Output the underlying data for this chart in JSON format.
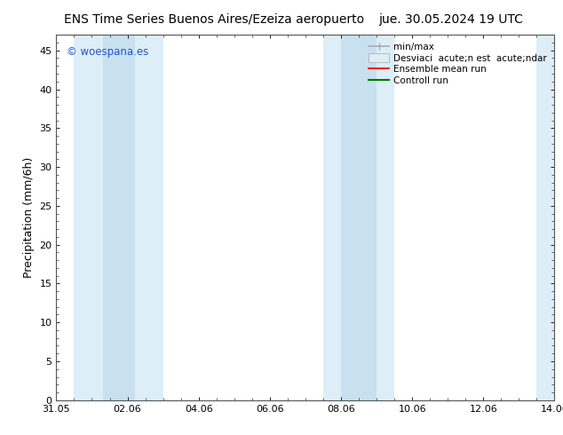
{
  "title_left": "ENS Time Series Buenos Aires/Ezeiza aeropuerto",
  "title_right": "jue. 30.05.2024 19 UTC",
  "ylabel": "Precipitation (mm/6h)",
  "ylim": [
    0,
    47
  ],
  "yticks": [
    0,
    5,
    10,
    15,
    20,
    25,
    30,
    35,
    40,
    45
  ],
  "xlim_start": 0,
  "xlim_end": 14,
  "xtick_labels": [
    "31.05",
    "02.06",
    "04.06",
    "06.06",
    "08.06",
    "10.06",
    "12.06",
    "14.06"
  ],
  "xtick_positions": [
    0,
    2,
    4,
    6,
    8,
    10,
    12,
    14
  ],
  "shaded_bands_light": [
    {
      "start": 0.5,
      "end": 3.0
    },
    {
      "start": 7.5,
      "end": 9.5
    },
    {
      "start": 13.5,
      "end": 14.0
    }
  ],
  "shaded_bands_dark": [
    {
      "start": 1.3,
      "end": 2.2
    },
    {
      "start": 8.0,
      "end": 9.0
    }
  ],
  "band_light_color": "#ddeef8",
  "band_dark_color": "#c8e0f0",
  "legend_entry1": "min/max",
  "legend_entry2": "Desviaci  acute;n est  acute;ndar",
  "legend_entry3": "Ensemble mean run",
  "legend_entry4": "Controll run",
  "color_minmax": "#aaaaaa",
  "color_std": "#bbccdd",
  "color_ensemble": "#ff2200",
  "color_control": "#007700",
  "watermark": "© woespana.es",
  "watermark_color": "#2255cc",
  "background_color": "#ffffff",
  "title_fontsize": 10,
  "tick_fontsize": 8,
  "ylabel_fontsize": 9,
  "legend_fontsize": 7.5
}
